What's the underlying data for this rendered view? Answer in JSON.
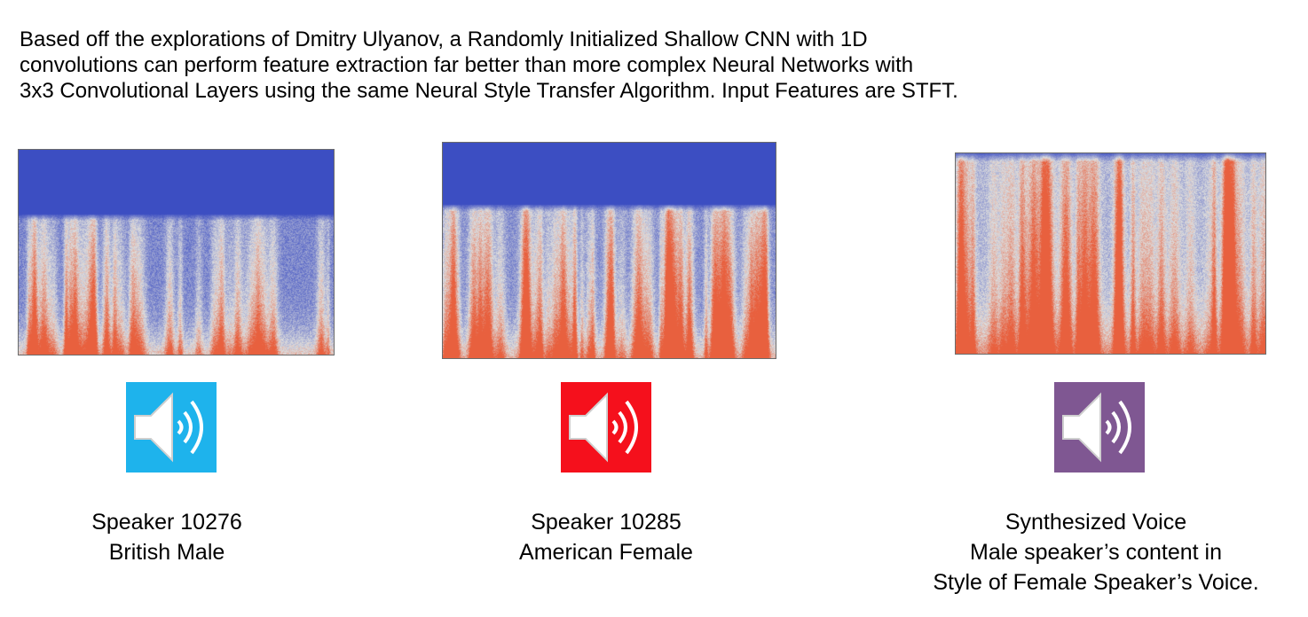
{
  "intro": {
    "lines": [
      "Based off the explorations of Dmitry Ulyanov, a Randomly Initialized Shallow CNN with 1D",
      "convolutions can perform feature extraction far better than more complex Neural Networks with",
      "3x3 Convolutional Layers using the same Neural Style Transfer Algorithm. Input Features are STFT."
    ]
  },
  "panels": [
    {
      "spectrogram": "british-male-spectrogram",
      "icon": "speaker-icon",
      "icon_color": "#1eb3ec",
      "caption": [
        "Speaker 10276",
        "British Male"
      ]
    },
    {
      "spectrogram": "american-female-spectrogram",
      "icon": "speaker-icon",
      "icon_color": "#f5101c",
      "caption": [
        "Speaker 10285",
        "American Female"
      ]
    },
    {
      "spectrogram": "synthesized-voice-spectrogram",
      "icon": "speaker-icon",
      "icon_color": "#7f5792",
      "caption": [
        "Synthesized Voice",
        "Male speaker’s content in",
        "Style of Female Speaker’s Voice."
      ]
    }
  ],
  "colors": {
    "background": "#ffffff",
    "spectrogram_low": "#3c4ec2",
    "spectrogram_mid": "#dddddd",
    "spectrogram_high": "#e8603e"
  }
}
